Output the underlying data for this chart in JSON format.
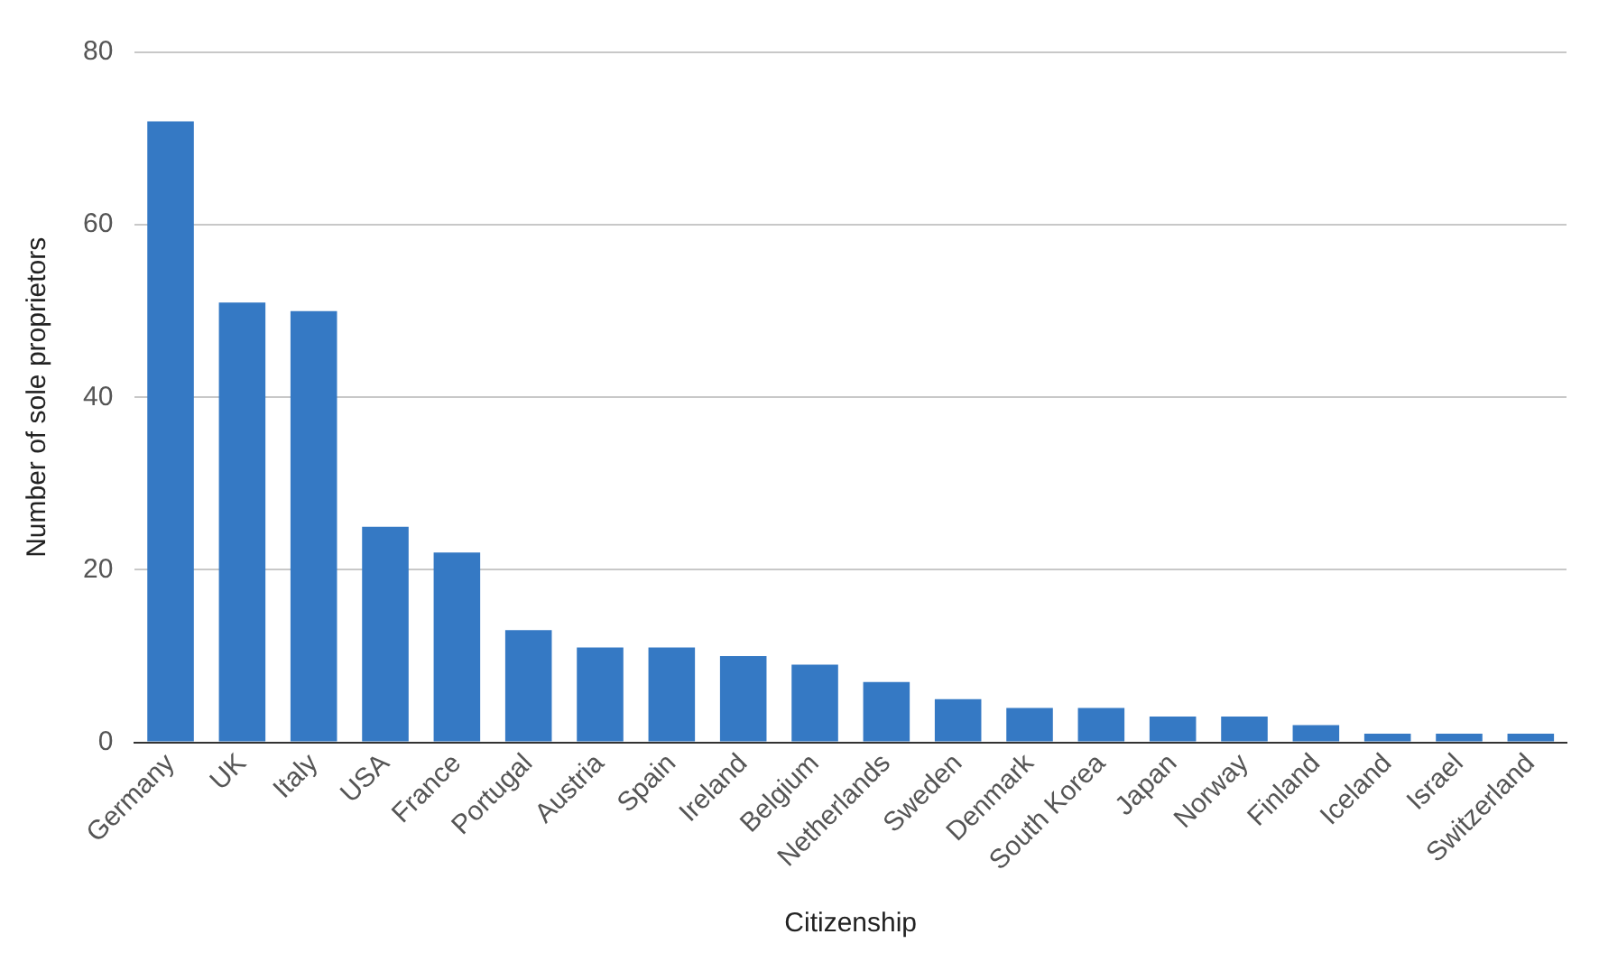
{
  "chart_data": {
    "type": "bar",
    "xlabel": "Citizenship",
    "ylabel": "Number of sole proprietors",
    "categories": [
      "Germany",
      "UK",
      "Italy",
      "USA",
      "France",
      "Portugal",
      "Austria",
      "Spain",
      "Ireland",
      "Belgium",
      "Netherlands",
      "Sweden",
      "Denmark",
      "South Korea",
      "Japan",
      "Norway",
      "Finland",
      "Iceland",
      "Israel",
      "Switzerland"
    ],
    "values": [
      72,
      51,
      50,
      25,
      22,
      13,
      11,
      11,
      10,
      9,
      7,
      5,
      4,
      4,
      3,
      3,
      2,
      1,
      1,
      1
    ],
    "color": "#3579c4",
    "ylim": [
      0,
      80
    ],
    "yticks": [
      0,
      20,
      40,
      60,
      80
    ],
    "grid": "y"
  }
}
